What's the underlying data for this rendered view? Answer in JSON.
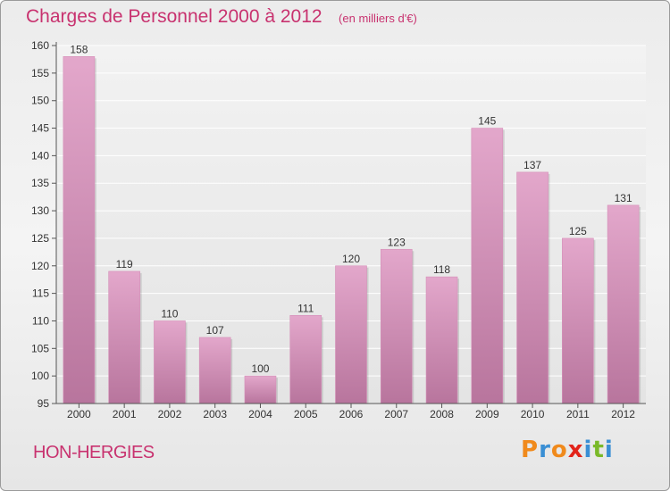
{
  "header": {
    "title": "Charges de Personnel 2000 à 2012",
    "subtitle": "(en milliers d'€)"
  },
  "footer": {
    "place": "HON-HERGIES",
    "brand": "Proxiti",
    "brand_letters": [
      {
        "ch": "P",
        "color": "#f08a1c"
      },
      {
        "ch": "r",
        "color": "#3a8fd4"
      },
      {
        "ch": "o",
        "color": "#f08a1c"
      },
      {
        "ch": "x",
        "color": "#e2231a"
      },
      {
        "ch": "i",
        "color": "#3a8fd4"
      },
      {
        "ch": "t",
        "color": "#7ab929"
      },
      {
        "ch": "i",
        "color": "#3a8fd4"
      }
    ]
  },
  "chart_data": {
    "type": "bar",
    "title": "Charges de Personnel 2000 à 2012",
    "subtitle": "(en milliers d'€)",
    "categories": [
      "2000",
      "2001",
      "2002",
      "2003",
      "2004",
      "2005",
      "2006",
      "2007",
      "2008",
      "2009",
      "2010",
      "2011",
      "2012"
    ],
    "values": [
      158,
      119,
      110,
      107,
      100,
      111,
      120,
      123,
      118,
      145,
      137,
      125,
      131
    ],
    "ylim": [
      95,
      160
    ],
    "yticks": [
      95,
      100,
      105,
      110,
      115,
      120,
      125,
      130,
      135,
      140,
      145,
      150,
      155,
      160
    ],
    "grid": true,
    "bar_color_top": "#e3a7cb",
    "bar_color_bottom": "#b8759d"
  }
}
